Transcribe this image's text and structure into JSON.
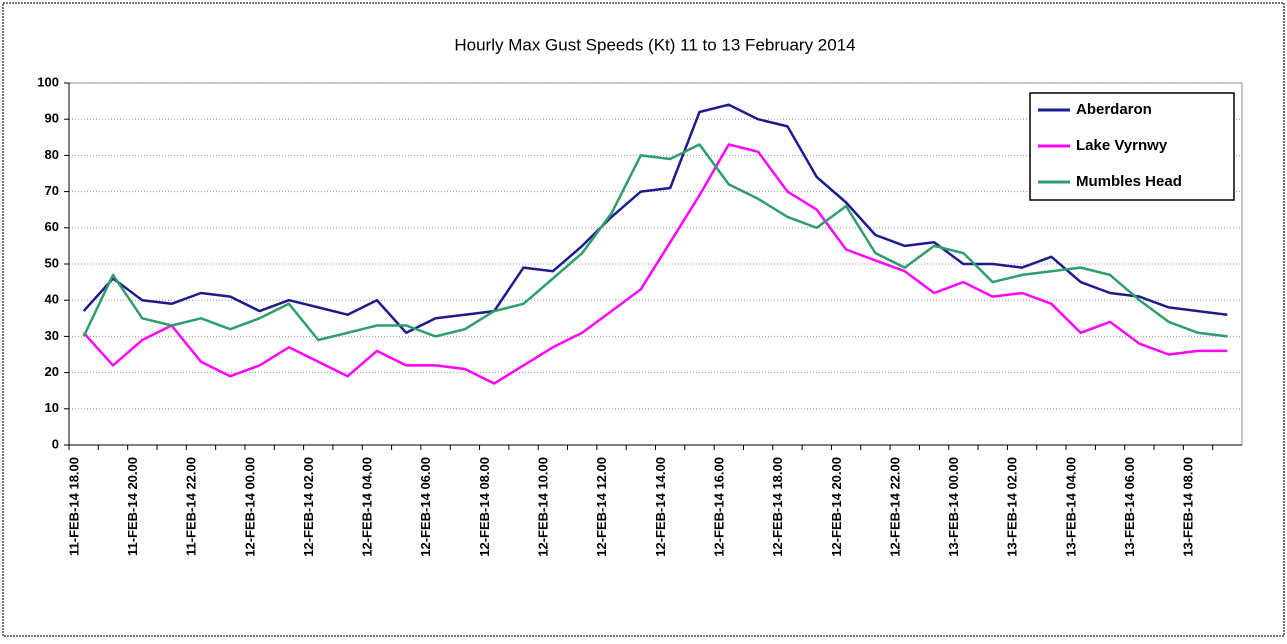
{
  "chart_data": {
    "type": "line",
    "title": "Hourly Max Gust Speeds (Kt) 11 to 13 February 2014",
    "categories": [
      "11-FEB-14 18.00",
      null,
      "11-FEB-14 20.00",
      null,
      "11-FEB-14 22.00",
      null,
      "12-FEB-14 00.00",
      null,
      "12-FEB-14 02.00",
      null,
      "12-FEB-14 04.00",
      null,
      "12-FEB-14 06.00",
      null,
      "12-FEB-14 08.00",
      null,
      "12-FEB-14 10.00",
      null,
      "12-FEB-14 12.00",
      null,
      "12-FEB-14 14.00",
      null,
      "12-FEB-14 16.00",
      null,
      "12-FEB-14 18.00",
      null,
      "12-FEB-14 20.00",
      null,
      "12-FEB-14 22.00",
      null,
      "13-FEB-14 00.00",
      null,
      "13-FEB-14 02.00",
      null,
      "13-FEB-14 04.00",
      null,
      "13-FEB-14 06.00",
      null,
      "13-FEB-14 08.00",
      null
    ],
    "series": [
      {
        "name": "Aberdaron",
        "color": "#1c1c8c",
        "values": [
          37,
          46,
          40,
          39,
          42,
          41,
          37,
          40,
          38,
          36,
          40,
          31,
          35,
          36,
          37,
          49,
          48,
          55,
          63,
          70,
          71,
          92,
          94,
          90,
          88,
          74,
          67,
          58,
          55,
          56,
          50,
          50,
          49,
          52,
          45,
          42,
          41,
          38,
          37,
          36
        ]
      },
      {
        "name": "Lake Vyrnwy",
        "color": "#ff00ff",
        "values": [
          31,
          22,
          29,
          33,
          23,
          19,
          22,
          27,
          23,
          19,
          26,
          22,
          22,
          21,
          17,
          22,
          27,
          31,
          37,
          43,
          56,
          69,
          83,
          81,
          70,
          65,
          54,
          51,
          48,
          42,
          45,
          41,
          42,
          39,
          31,
          34,
          28,
          25,
          26,
          26
        ]
      },
      {
        "name": "Mumbles Head",
        "color": "#2e9e6a",
        "values": [
          30,
          47,
          35,
          33,
          35,
          32,
          35,
          39,
          29,
          31,
          33,
          33,
          30,
          32,
          37,
          39,
          46,
          53,
          64,
          80,
          79,
          83,
          72,
          68,
          63,
          60,
          66,
          53,
          49,
          55,
          53,
          45,
          47,
          48,
          49,
          47,
          40,
          34,
          31,
          30
        ]
      }
    ],
    "ylim": [
      0,
      100
    ],
    "yticks": [
      0,
      10,
      20,
      30,
      40,
      50,
      60,
      70,
      80,
      90,
      100
    ],
    "grid": true,
    "legend": "upper right"
  }
}
